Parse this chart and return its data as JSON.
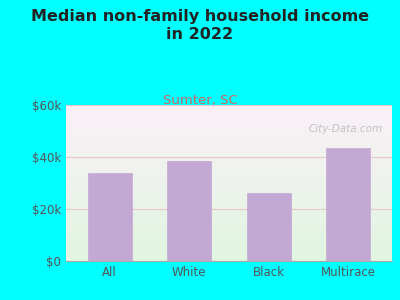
{
  "title": "Median non-family household income\nin 2022",
  "subtitle": "Sumter, SC",
  "categories": [
    "All",
    "White",
    "Black",
    "Multirace"
  ],
  "values": [
    34000,
    38500,
    26000,
    43500
  ],
  "bar_color": "#c4a8d4",
  "bg_outer": "#00ffff",
  "ylim": [
    0,
    60000
  ],
  "yticks": [
    0,
    20000,
    40000,
    60000
  ],
  "ytick_labels": [
    "$0",
    "$20k",
    "$40k",
    "$60k"
  ],
  "title_fontsize": 11.5,
  "subtitle_fontsize": 9.5,
  "tick_fontsize": 8.5,
  "title_color": "#222222",
  "subtitle_color": "#cc6666",
  "tick_color": "#555555",
  "grid_color": "#e8c8c8",
  "watermark": "City-Data.com"
}
